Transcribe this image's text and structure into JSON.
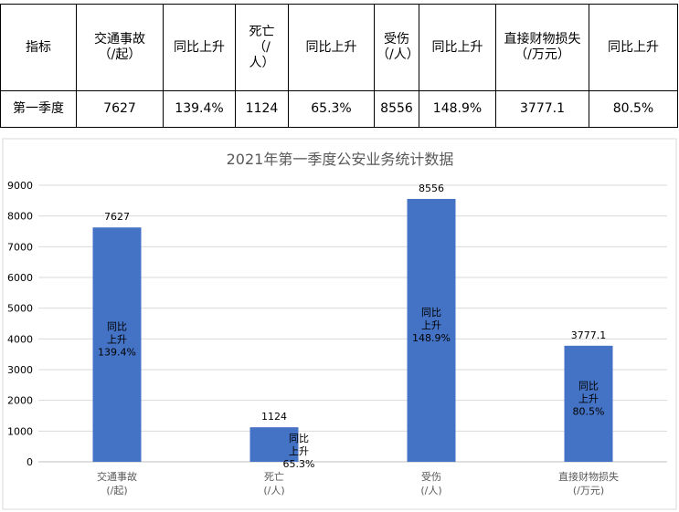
{
  "table": {
    "headers": [
      "指标",
      "交通事故\n（/起）",
      "同比上升",
      "死亡\n（/\n人）",
      "同比上升",
      "受伤\n（/人）",
      "同比上升",
      "直接财物损失\n（/万元）",
      "同比上升"
    ],
    "row": [
      "第一季度",
      "7627",
      "139.4%",
      "1124",
      "65.3%",
      "8556",
      "148.9%",
      "3777.1",
      "80.5%"
    ]
  },
  "chart_data": {
    "type": "bar",
    "title": "2021年第一季度公安业务统计数据",
    "categories": [
      "交通事故\n(/起)",
      "死亡\n(/人)",
      "受伤\n(/人)",
      "直接财物损失\n(/万元)"
    ],
    "values": [
      7627,
      1124,
      8556,
      3777.1
    ],
    "value_labels": [
      "7627",
      "1124",
      "8556",
      "3777.1"
    ],
    "annotations": [
      "同比\n上升\n139.4%",
      "同比\n上升\n65.3%",
      "同比\n上升\n148.9%",
      "同比\n上升\n80.5%"
    ],
    "ylim": [
      0,
      9000
    ],
    "yticks": [
      0,
      1000,
      2000,
      3000,
      4000,
      5000,
      6000,
      7000,
      8000,
      9000
    ],
    "grid": true,
    "legend": "none",
    "bar_color": "#4472C4"
  }
}
